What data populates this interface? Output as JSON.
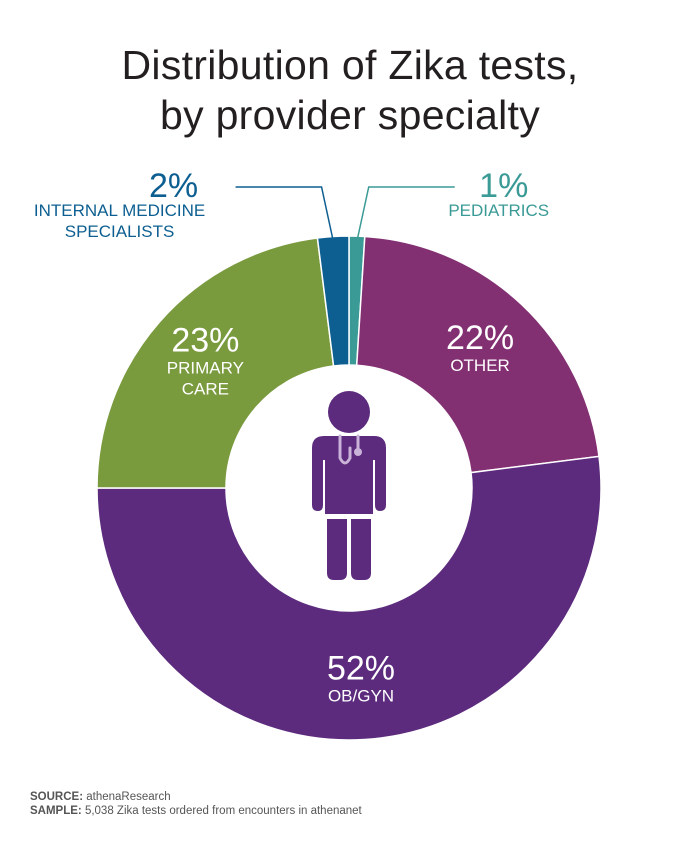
{
  "title_line1": "Distribution of Zika tests,",
  "title_line2": "by provider specialty",
  "chart_data": {
    "type": "pie",
    "variant": "donut",
    "title": "Distribution of Zika tests, by provider specialty",
    "unit": "%",
    "slices": [
      {
        "label": "PEDIATRICS",
        "label_lines": [
          "PEDIATRICS"
        ],
        "pct_text": "1%",
        "value": 1,
        "color": "#3a9a96",
        "text_color": "#3a9a96"
      },
      {
        "label": "OTHER",
        "label_lines": [
          "OTHER"
        ],
        "pct_text": "22%",
        "value": 22,
        "color": "#833073",
        "text_color": "#ffffff"
      },
      {
        "label": "OB/GYN",
        "label_lines": [
          "OB/GYN"
        ],
        "pct_text": "52%",
        "value": 52,
        "color": "#5c2b7d",
        "text_color": "#ffffff"
      },
      {
        "label": "PRIMARY CARE",
        "label_lines": [
          "PRIMARY",
          "CARE"
        ],
        "pct_text": "23%",
        "value": 23,
        "color": "#7a9a3e",
        "text_color": "#ffffff"
      },
      {
        "label": "INTERNAL MEDICINE SPECIALISTS",
        "label_lines": [
          "INTERNAL MEDICINE",
          "SPECIALISTS"
        ],
        "pct_text": "2%",
        "value": 2,
        "color": "#0d5f91",
        "text_color": "#0d5f91"
      }
    ]
  },
  "center_icon": {
    "name": "doctor-icon",
    "body_color": "#5c2b7d",
    "stethoscope_color": "#c9b3d9"
  },
  "footer": {
    "source_label": "SOURCE:",
    "source_value": " athenaResearch",
    "sample_label": "SAMPLE:",
    "sample_value": " 5,038 Zika tests ordered from encounters in athenanet"
  }
}
